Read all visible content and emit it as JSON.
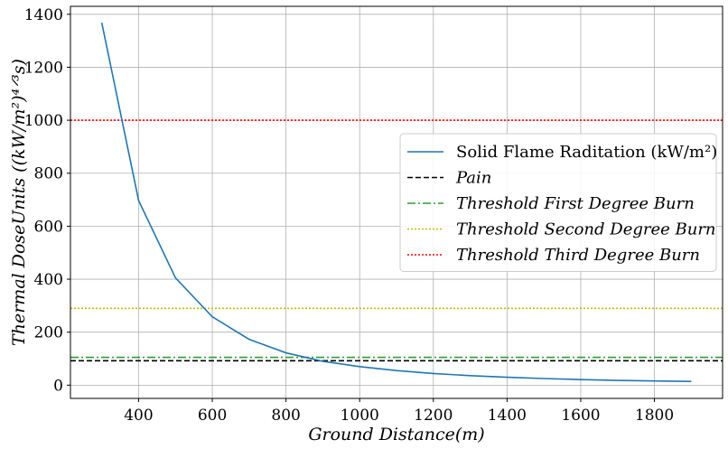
{
  "chart_data": {
    "type": "line",
    "xlabel": "Ground Distance(m)",
    "ylabel": "Thermal DoseUnits ((kW/m²)⁴ᐟ³s)",
    "xlim": [
      215,
      1985
    ],
    "ylim": [
      -50,
      1430
    ],
    "xticks": [
      400,
      600,
      800,
      1000,
      1200,
      1400,
      1600,
      1800
    ],
    "yticks": [
      0,
      200,
      400,
      600,
      800,
      1000,
      1200,
      1400
    ],
    "grid": true,
    "legend_position": "center-right",
    "series": [
      {
        "name": "Solid Flame Raditation (kW/m²)",
        "style": "solid",
        "color": "#1f77b4",
        "x": [
          300,
          400,
          500,
          600,
          700,
          800,
          900,
          1000,
          1100,
          1200,
          1300,
          1400,
          1500,
          1600,
          1700,
          1800,
          1900
        ],
        "y": [
          1368,
          697,
          405,
          258,
          173,
          122,
          90,
          70,
          55,
          44,
          36,
          30,
          25,
          21,
          18,
          16,
          14
        ]
      }
    ],
    "thresholds": [
      {
        "name": "Pain",
        "value": 92,
        "style": "dashed",
        "color": "#000000"
      },
      {
        "name": "Threshold First Degree Burn",
        "value": 105,
        "style": "dashdot",
        "color": "#2ca02c"
      },
      {
        "name": "Threshold Second Degree Burn",
        "value": 290,
        "style": "dotted",
        "color": "#bfbf00"
      },
      {
        "name": "Threshold Third Degree Burn",
        "value": 1000,
        "style": "dotted",
        "color": "#ff0000"
      }
    ]
  }
}
